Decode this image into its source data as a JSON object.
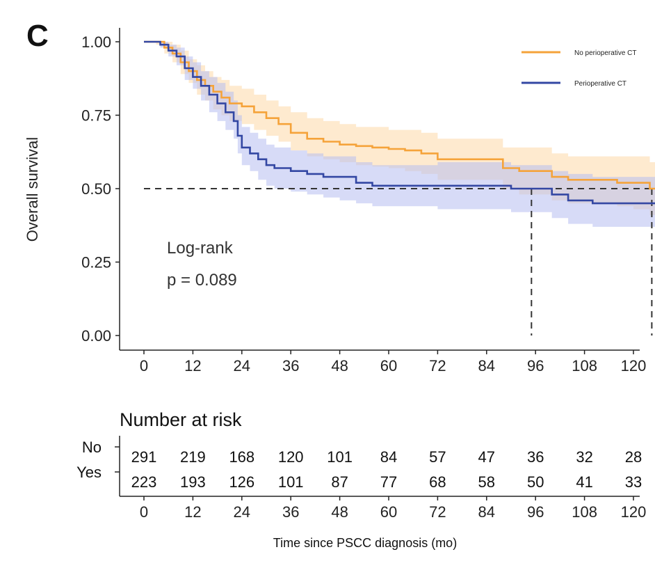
{
  "chart_data": {
    "type": "line",
    "panel_label": "C",
    "ylabel": "Overall survival",
    "xlabel": "Time since PSCC diagnosis (mo)",
    "xlim": [
      0,
      126
    ],
    "ylim": [
      0,
      1
    ],
    "x_ticks": [
      0,
      12,
      24,
      36,
      48,
      60,
      72,
      84,
      96,
      108,
      120
    ],
    "y_ticks": [
      0.0,
      0.25,
      0.5,
      0.75,
      1.0
    ],
    "y_tick_labels": [
      "0.00",
      "0.25",
      "0.50",
      "0.75",
      "1.00"
    ],
    "grid": false,
    "legend_position": "top-right",
    "annotation": {
      "line1": "Log-rank",
      "line2": "p = 0.089"
    },
    "median_reference": {
      "y": 0.5,
      "x_medians": [
        95,
        124.5
      ]
    },
    "series": [
      {
        "name": "No perioperative CT",
        "color": "#F5A33A",
        "band_color": "#FDD9A8",
        "points": [
          [
            0,
            1.0
          ],
          [
            3,
            1.0
          ],
          [
            5,
            0.98
          ],
          [
            7,
            0.96
          ],
          [
            9,
            0.93
          ],
          [
            11,
            0.9
          ],
          [
            13,
            0.87
          ],
          [
            15,
            0.85
          ],
          [
            17,
            0.83
          ],
          [
            19,
            0.81
          ],
          [
            21,
            0.79
          ],
          [
            24,
            0.78
          ],
          [
            27,
            0.76
          ],
          [
            30,
            0.74
          ],
          [
            33,
            0.72
          ],
          [
            36,
            0.69
          ],
          [
            40,
            0.67
          ],
          [
            44,
            0.66
          ],
          [
            48,
            0.65
          ],
          [
            52,
            0.645
          ],
          [
            56,
            0.64
          ],
          [
            60,
            0.635
          ],
          [
            64,
            0.63
          ],
          [
            68,
            0.62
          ],
          [
            72,
            0.6
          ],
          [
            78,
            0.6
          ],
          [
            84,
            0.6
          ],
          [
            88,
            0.57
          ],
          [
            92,
            0.56
          ],
          [
            96,
            0.56
          ],
          [
            100,
            0.54
          ],
          [
            104,
            0.53
          ],
          [
            110,
            0.53
          ],
          [
            116,
            0.52
          ],
          [
            120,
            0.52
          ],
          [
            124,
            0.5
          ],
          [
            126,
            0.49
          ]
        ],
        "ci_low": [
          [
            0,
            1.0
          ],
          [
            3,
            0.99
          ],
          [
            5,
            0.96
          ],
          [
            7,
            0.93
          ],
          [
            9,
            0.89
          ],
          [
            11,
            0.86
          ],
          [
            13,
            0.82
          ],
          [
            15,
            0.8
          ],
          [
            17,
            0.77
          ],
          [
            19,
            0.75
          ],
          [
            21,
            0.73
          ],
          [
            24,
            0.72
          ],
          [
            27,
            0.7
          ],
          [
            30,
            0.68
          ],
          [
            33,
            0.66
          ],
          [
            36,
            0.63
          ],
          [
            40,
            0.61
          ],
          [
            44,
            0.6
          ],
          [
            48,
            0.59
          ],
          [
            52,
            0.58
          ],
          [
            56,
            0.575
          ],
          [
            60,
            0.57
          ],
          [
            64,
            0.56
          ],
          [
            68,
            0.55
          ],
          [
            72,
            0.53
          ],
          [
            78,
            0.53
          ],
          [
            84,
            0.53
          ],
          [
            88,
            0.5
          ],
          [
            92,
            0.48
          ],
          [
            96,
            0.48
          ],
          [
            100,
            0.46
          ],
          [
            104,
            0.45
          ],
          [
            110,
            0.45
          ],
          [
            116,
            0.44
          ],
          [
            120,
            0.43
          ],
          [
            124,
            0.41
          ],
          [
            126,
            0.4
          ]
        ],
        "ci_high": [
          [
            0,
            1.0
          ],
          [
            3,
            1.0
          ],
          [
            5,
            1.0
          ],
          [
            7,
            0.99
          ],
          [
            9,
            0.97
          ],
          [
            11,
            0.94
          ],
          [
            13,
            0.92
          ],
          [
            15,
            0.9
          ],
          [
            17,
            0.88
          ],
          [
            19,
            0.87
          ],
          [
            21,
            0.85
          ],
          [
            24,
            0.84
          ],
          [
            27,
            0.82
          ],
          [
            30,
            0.8
          ],
          [
            33,
            0.78
          ],
          [
            36,
            0.76
          ],
          [
            40,
            0.74
          ],
          [
            44,
            0.73
          ],
          [
            48,
            0.72
          ],
          [
            52,
            0.71
          ],
          [
            56,
            0.71
          ],
          [
            60,
            0.7
          ],
          [
            64,
            0.7
          ],
          [
            68,
            0.69
          ],
          [
            72,
            0.67
          ],
          [
            78,
            0.67
          ],
          [
            84,
            0.67
          ],
          [
            88,
            0.64
          ],
          [
            92,
            0.64
          ],
          [
            96,
            0.64
          ],
          [
            100,
            0.62
          ],
          [
            104,
            0.61
          ],
          [
            110,
            0.61
          ],
          [
            116,
            0.61
          ],
          [
            120,
            0.61
          ],
          [
            124,
            0.59
          ],
          [
            126,
            0.58
          ]
        ]
      },
      {
        "name": "Perioperative CT",
        "color": "#3347A3",
        "band_color": "#B7BDF0",
        "points": [
          [
            0,
            1.0
          ],
          [
            4,
            0.99
          ],
          [
            6,
            0.97
          ],
          [
            8,
            0.95
          ],
          [
            10,
            0.91
          ],
          [
            12,
            0.88
          ],
          [
            14,
            0.85
          ],
          [
            16,
            0.82
          ],
          [
            18,
            0.79
          ],
          [
            20,
            0.76
          ],
          [
            22,
            0.73
          ],
          [
            23,
            0.68
          ],
          [
            24,
            0.64
          ],
          [
            26,
            0.62
          ],
          [
            28,
            0.6
          ],
          [
            30,
            0.58
          ],
          [
            32,
            0.57
          ],
          [
            36,
            0.56
          ],
          [
            40,
            0.55
          ],
          [
            44,
            0.54
          ],
          [
            48,
            0.54
          ],
          [
            52,
            0.52
          ],
          [
            56,
            0.51
          ],
          [
            60,
            0.51
          ],
          [
            66,
            0.51
          ],
          [
            72,
            0.51
          ],
          [
            78,
            0.51
          ],
          [
            84,
            0.51
          ],
          [
            90,
            0.5
          ],
          [
            96,
            0.5
          ],
          [
            100,
            0.48
          ],
          [
            104,
            0.46
          ],
          [
            110,
            0.45
          ],
          [
            116,
            0.45
          ],
          [
            120,
            0.45
          ],
          [
            126,
            0.45
          ]
        ],
        "ci_low": [
          [
            0,
            1.0
          ],
          [
            4,
            0.98
          ],
          [
            6,
            0.95
          ],
          [
            8,
            0.92
          ],
          [
            10,
            0.87
          ],
          [
            12,
            0.84
          ],
          [
            14,
            0.8
          ],
          [
            16,
            0.76
          ],
          [
            18,
            0.73
          ],
          [
            20,
            0.7
          ],
          [
            22,
            0.67
          ],
          [
            23,
            0.62
          ],
          [
            24,
            0.58
          ],
          [
            26,
            0.56
          ],
          [
            28,
            0.53
          ],
          [
            30,
            0.51
          ],
          [
            32,
            0.5
          ],
          [
            36,
            0.49
          ],
          [
            40,
            0.48
          ],
          [
            44,
            0.47
          ],
          [
            48,
            0.46
          ],
          [
            52,
            0.45
          ],
          [
            56,
            0.44
          ],
          [
            60,
            0.44
          ],
          [
            66,
            0.44
          ],
          [
            72,
            0.43
          ],
          [
            78,
            0.43
          ],
          [
            84,
            0.43
          ],
          [
            90,
            0.42
          ],
          [
            96,
            0.42
          ],
          [
            100,
            0.4
          ],
          [
            104,
            0.38
          ],
          [
            110,
            0.37
          ],
          [
            116,
            0.37
          ],
          [
            120,
            0.37
          ],
          [
            126,
            0.37
          ]
        ],
        "ci_high": [
          [
            0,
            1.0
          ],
          [
            4,
            1.0
          ],
          [
            6,
            0.99
          ],
          [
            8,
            0.98
          ],
          [
            10,
            0.95
          ],
          [
            12,
            0.93
          ],
          [
            14,
            0.9
          ],
          [
            16,
            0.88
          ],
          [
            18,
            0.86
          ],
          [
            20,
            0.83
          ],
          [
            22,
            0.8
          ],
          [
            23,
            0.75
          ],
          [
            24,
            0.71
          ],
          [
            26,
            0.69
          ],
          [
            28,
            0.67
          ],
          [
            30,
            0.65
          ],
          [
            32,
            0.64
          ],
          [
            36,
            0.63
          ],
          [
            40,
            0.62
          ],
          [
            44,
            0.61
          ],
          [
            48,
            0.61
          ],
          [
            52,
            0.59
          ],
          [
            56,
            0.58
          ],
          [
            60,
            0.58
          ],
          [
            66,
            0.58
          ],
          [
            72,
            0.59
          ],
          [
            78,
            0.59
          ],
          [
            84,
            0.59
          ],
          [
            90,
            0.58
          ],
          [
            96,
            0.58
          ],
          [
            100,
            0.56
          ],
          [
            104,
            0.55
          ],
          [
            110,
            0.54
          ],
          [
            116,
            0.54
          ],
          [
            120,
            0.54
          ],
          [
            126,
            0.54
          ]
        ]
      }
    ],
    "risk_table": {
      "title": "Number at risk",
      "times": [
        0,
        12,
        24,
        36,
        48,
        60,
        72,
        84,
        96,
        108,
        120
      ],
      "rows": [
        {
          "label": "No",
          "values": [
            291,
            219,
            168,
            120,
            101,
            84,
            57,
            47,
            36,
            32,
            28
          ]
        },
        {
          "label": "Yes",
          "values": [
            223,
            193,
            126,
            101,
            87,
            77,
            68,
            58,
            50,
            41,
            33
          ]
        }
      ]
    }
  }
}
